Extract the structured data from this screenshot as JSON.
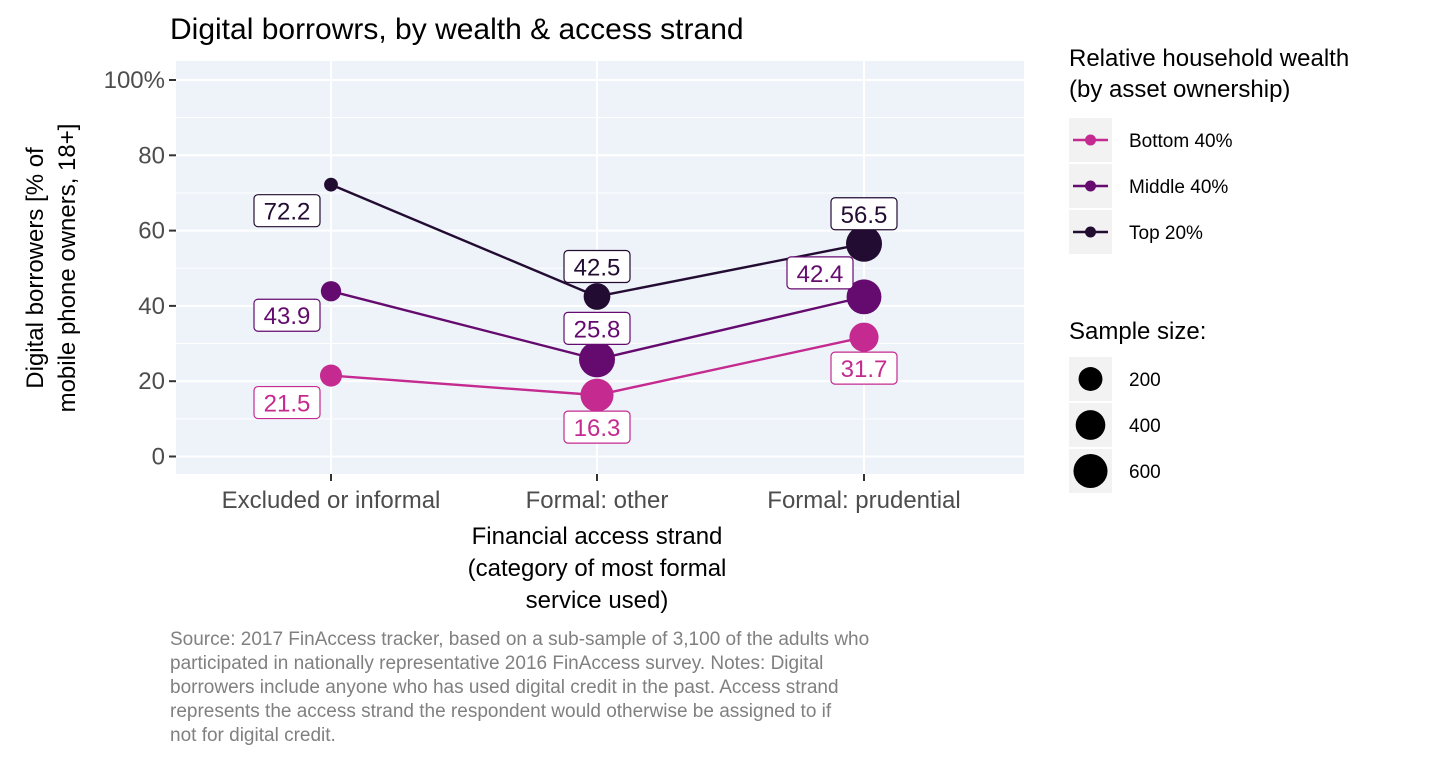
{
  "chart_data": {
    "type": "line",
    "title": "Digital borrowrs, by wealth & access strand",
    "xlabel": [
      "Financial access strand",
      "(category of most formal",
      "service used)"
    ],
    "ylabel": [
      "Digital borrowers [% of",
      "mobile phone owners, 18+]"
    ],
    "categories": [
      "Excluded or informal",
      "Formal: other",
      "Formal: prudential"
    ],
    "ylim": [
      0,
      100
    ],
    "yticks": [
      0,
      20,
      40,
      60,
      80,
      100
    ],
    "ytick_labels": [
      "0",
      "20",
      "40",
      "60",
      "80",
      "100%"
    ],
    "grid": true,
    "legend_position": "right",
    "series": [
      {
        "name": "Bottom 40%",
        "color": "#c42a8f",
        "values": [
          21.5,
          16.3,
          31.7
        ],
        "labels": [
          "21.5",
          "16.3",
          "31.7"
        ],
        "sample_size": [
          150,
          550,
          380
        ]
      },
      {
        "name": "Middle 40%",
        "color": "#650a6e",
        "values": [
          43.9,
          25.8,
          42.4
        ],
        "labels": [
          "43.9",
          "25.8",
          "42.4"
        ],
        "sample_size": [
          110,
          700,
          640
        ]
      },
      {
        "name": "Top 20%",
        "color": "#230c32",
        "values": [
          72.2,
          42.5,
          56.5
        ],
        "labels": [
          "72.2",
          "42.5",
          "56.5"
        ],
        "sample_size": [
          15,
          290,
          700
        ]
      }
    ],
    "legend_color_title": [
      "Relative household wealth",
      "(by asset ownership)"
    ],
    "legend_size_title": "Sample size:",
    "legend_size_values": [
      200,
      400,
      600
    ],
    "caption": [
      "Source: 2017 FinAccess tracker, based on a sub-sample of 3,100 of the adults who",
      "participated in nationally representative 2016 FinAccess survey. Notes: Digital",
      "borrowers include anyone who has used digital credit in the past. Access strand",
      "represents the access strand the respondent would otherwise be assigned to if",
      "not for digital credit."
    ]
  }
}
